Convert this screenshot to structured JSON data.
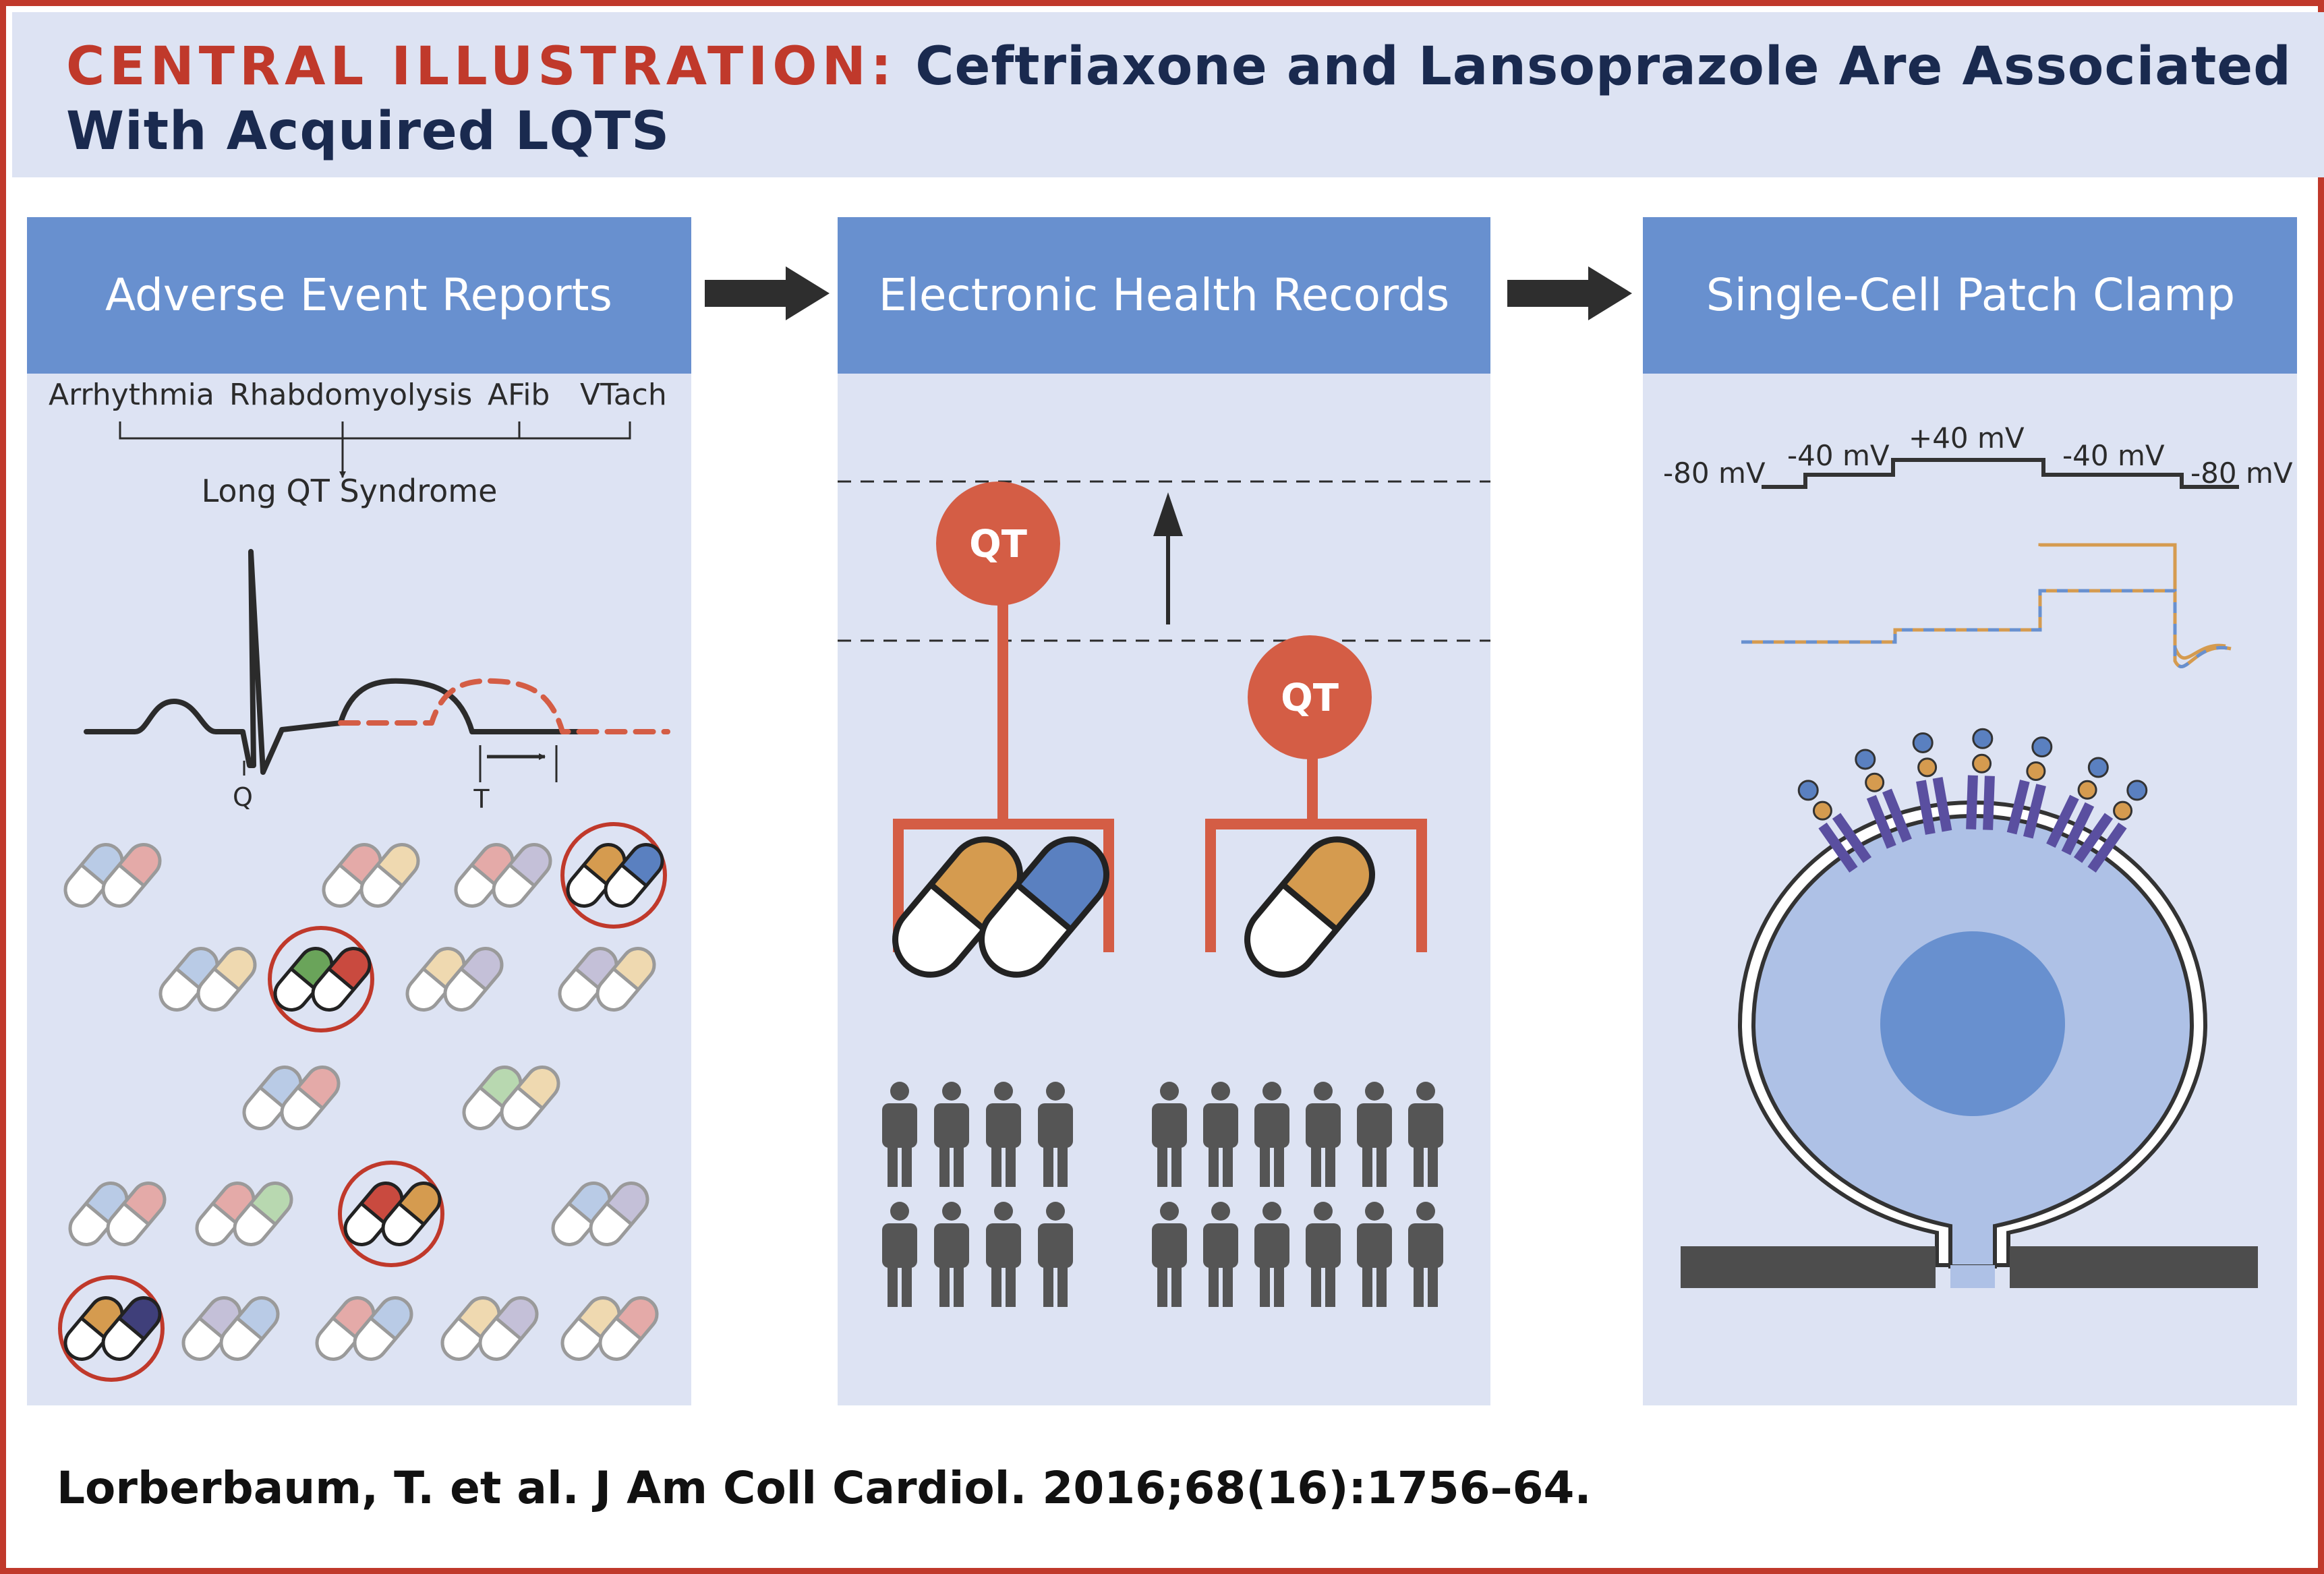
{
  "title": {
    "lead": "CENTRAL ILLUSTRATION:",
    "line1": "Ceftriaxone and Lansoprazole Are Associated",
    "line2": "With Acquired LQTS"
  },
  "panels": [
    {
      "title": "Adverse Event Reports",
      "labels": {
        "arrhythmia": "Arrhythmia",
        "rhabdo": "Rhabdomyolysis",
        "afib": "AFib",
        "vtach": "VTach",
        "lqts": "Long QT Syndrome",
        "q": "Q",
        "t": "T"
      }
    },
    {
      "title": "Electronic Health Records",
      "labels": {
        "qt": "QT"
      }
    },
    {
      "title": "Single-Cell Patch Clamp",
      "labels": {
        "v1": "-80 mV",
        "v2": "-40 mV",
        "v3": "+40 mV",
        "v4": "-40 mV",
        "v5": "-80 mV"
      }
    }
  ],
  "citation": "Lorberbaum, T. et al. J Am Coll Cardiol. 2016;68(16):1756–64.",
  "colors": {
    "brand_red": "#c0392b",
    "navy": "#1a2a4f",
    "panel_header": "#6890cf",
    "panel_bg": "#dde3f3",
    "orange": "#d59b4f",
    "blue": "#5a80c0",
    "qt_red": "#d45d45",
    "person": "#555555"
  }
}
